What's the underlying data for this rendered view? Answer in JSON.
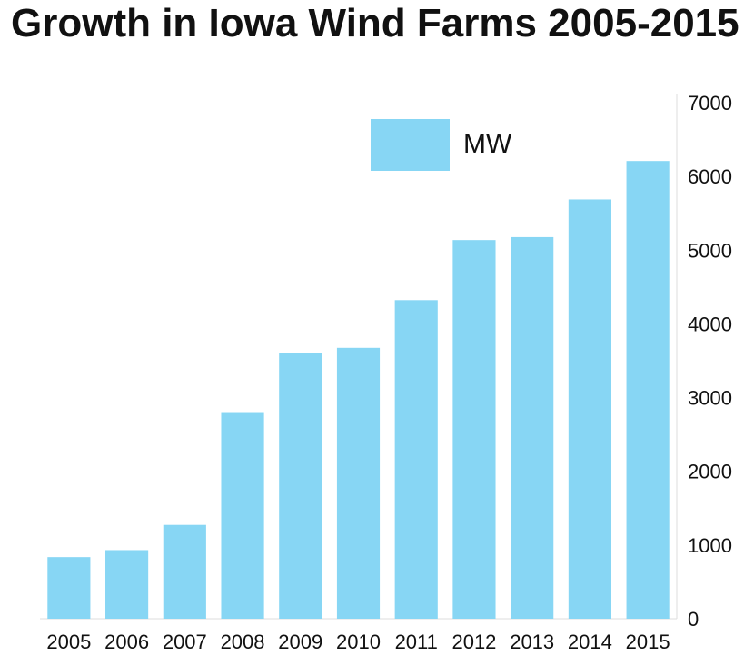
{
  "chart_data": {
    "type": "bar",
    "title": "Growth in Iowa Wind Farms 2005-2015",
    "categories": [
      "2005",
      "2006",
      "2007",
      "2008",
      "2009",
      "2010",
      "2011",
      "2012",
      "2013",
      "2014",
      "2015"
    ],
    "series": [
      {
        "name": "MW",
        "values": [
          836,
          931,
          1273,
          2791,
          3604,
          3675,
          4322,
          5137,
          5177,
          5688,
          6209
        ],
        "color": "#87d6f4"
      }
    ],
    "ylim": [
      0,
      7000
    ],
    "yticks": [
      "0",
      "1000",
      "2000",
      "3000",
      "4000",
      "5000",
      "6000",
      "7000"
    ],
    "y_axis_side": "right",
    "legend_position": "top-right",
    "xlabel": "",
    "ylabel": ""
  }
}
